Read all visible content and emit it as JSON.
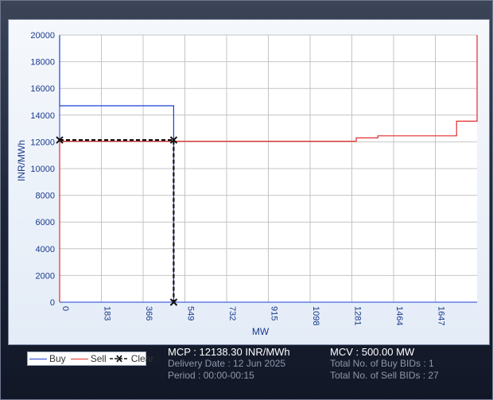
{
  "chart_data": {
    "type": "line",
    "xlabel": "MW",
    "ylabel": "INR/MWh",
    "xlim": [
      0,
      1830
    ],
    "ylim": [
      0,
      20000
    ],
    "x_ticks": [
      0,
      183,
      366,
      549,
      732,
      915,
      1098,
      1281,
      1464,
      1647
    ],
    "y_ticks": [
      0,
      2000,
      4000,
      6000,
      8000,
      10000,
      12000,
      14000,
      16000,
      18000,
      20000
    ],
    "grid": true,
    "legend_position": "bottom-left",
    "series": [
      {
        "name": "Buy",
        "color": "#1f3fd6",
        "points": [
          [
            0,
            20000
          ],
          [
            0,
            14700
          ],
          [
            500,
            14700
          ],
          [
            500,
            0
          ]
        ]
      },
      {
        "name": "Sell",
        "color": "#e22b2b",
        "points": [
          [
            0,
            0
          ],
          [
            0,
            12050
          ],
          [
            1300,
            12050
          ],
          [
            1300,
            12300
          ],
          [
            1395,
            12300
          ],
          [
            1395,
            12450
          ],
          [
            1740,
            12450
          ],
          [
            1740,
            13550
          ],
          [
            1830,
            13550
          ],
          [
            1830,
            20000
          ]
        ]
      },
      {
        "name": "Clear",
        "color": "#111111",
        "points": [
          [
            0,
            12138.3
          ],
          [
            500,
            12138.3
          ],
          [
            500,
            0
          ]
        ]
      }
    ]
  },
  "info": {
    "mcp": "MCP : 12138.30 INR/MWh",
    "delivery_date": "Delivery Date : 12 Jun 2025",
    "period": "Period :  00:00-00:15",
    "mcv": "MCV : 500.00 MW",
    "buy_bids": "Total No. of Buy BIDs : 1",
    "sell_bids": "Total No. of Sell BIDs : 27"
  }
}
